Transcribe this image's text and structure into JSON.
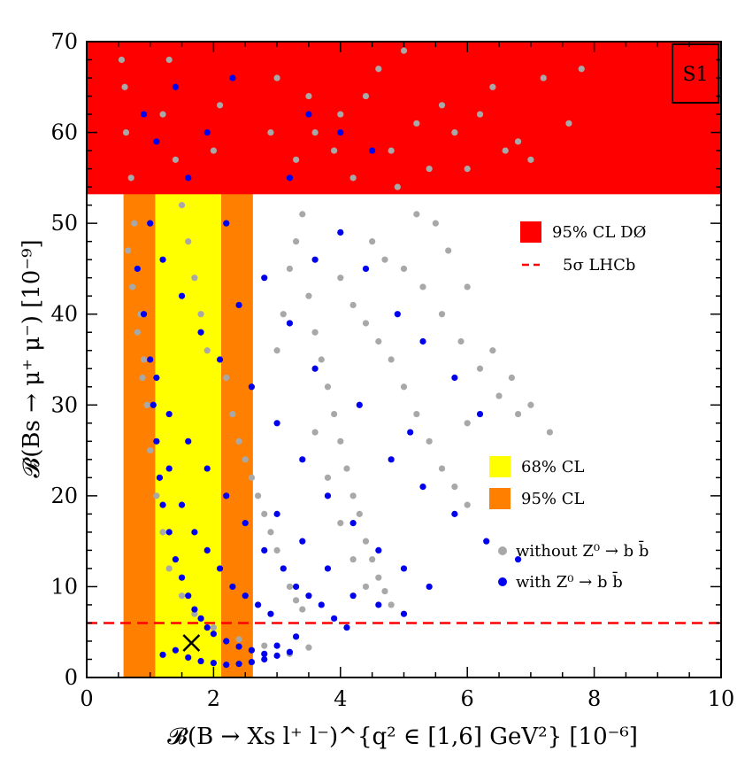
{
  "chart_data": {
    "type": "scatter",
    "tag": "S1",
    "xlabel": "𝓑(B → Xs l⁺ l⁻)^{q² ∈ [1,6] GeV²}   [10⁻⁶]",
    "ylabel": "𝓑(Bs → μ⁺ μ⁻)   [10⁻⁹]",
    "xlim": [
      0,
      10
    ],
    "ylim": [
      0,
      70
    ],
    "x_ticks": [
      "0",
      "2",
      "4",
      "6",
      "8",
      "10"
    ],
    "y_ticks": [
      "0",
      "10",
      "20",
      "30",
      "40",
      "50",
      "60",
      "70"
    ],
    "bands": [
      {
        "name": "95% CL",
        "axis": "x",
        "range": [
          0.58,
          2.62
        ],
        "color": "#ff8000"
      },
      {
        "name": "68% CL",
        "axis": "x",
        "range": [
          1.08,
          2.12
        ],
        "color": "#ffff00"
      },
      {
        "name": "95% CL DØ",
        "axis": "y",
        "range": [
          53.2,
          70
        ],
        "color": "#ff0000"
      }
    ],
    "lines": [
      {
        "name": "5σ LHCb",
        "axis": "y",
        "value": 6.0,
        "color": "#ff0000",
        "style": "dashed"
      }
    ],
    "marker": {
      "x": 1.65,
      "y": 3.8,
      "symbol": "x"
    },
    "series": [
      {
        "name": "without Z⁰ → b b̄",
        "color": "#a8a8a8",
        "points": [
          [
            0.55,
            68
          ],
          [
            0.6,
            65
          ],
          [
            0.62,
            60
          ],
          [
            0.7,
            55
          ],
          [
            0.75,
            50
          ],
          [
            0.8,
            45
          ],
          [
            0.85,
            40
          ],
          [
            0.9,
            35
          ],
          [
            0.95,
            30
          ],
          [
            1.0,
            25
          ],
          [
            1.1,
            20
          ],
          [
            1.2,
            16
          ],
          [
            1.3,
            12
          ],
          [
            1.5,
            9
          ],
          [
            1.7,
            7
          ],
          [
            2.0,
            5.5
          ],
          [
            2.4,
            4.2
          ],
          [
            2.8,
            3.5
          ],
          [
            3.2,
            2.6
          ],
          [
            3.5,
            3.3
          ],
          [
            0.65,
            47
          ],
          [
            0.72,
            43
          ],
          [
            0.8,
            38
          ],
          [
            0.88,
            33
          ],
          [
            1.2,
            62
          ],
          [
            1.3,
            68
          ],
          [
            1.4,
            57
          ],
          [
            1.5,
            52
          ],
          [
            1.6,
            48
          ],
          [
            1.7,
            44
          ],
          [
            1.8,
            40
          ],
          [
            1.9,
            36
          ],
          [
            2.0,
            58
          ],
          [
            2.1,
            63
          ],
          [
            2.2,
            33
          ],
          [
            2.3,
            29
          ],
          [
            2.4,
            26
          ],
          [
            2.5,
            24
          ],
          [
            2.6,
            22
          ],
          [
            2.7,
            20
          ],
          [
            2.8,
            18
          ],
          [
            2.9,
            16
          ],
          [
            3.0,
            14
          ],
          [
            3.1,
            12
          ],
          [
            3.2,
            10
          ],
          [
            3.3,
            8.5
          ],
          [
            3.4,
            7.5
          ],
          [
            3.0,
            36
          ],
          [
            3.1,
            40
          ],
          [
            3.2,
            45
          ],
          [
            3.3,
            48
          ],
          [
            3.4,
            51
          ],
          [
            3.5,
            42
          ],
          [
            3.6,
            38
          ],
          [
            3.7,
            35
          ],
          [
            3.8,
            32
          ],
          [
            3.9,
            29
          ],
          [
            4.0,
            26
          ],
          [
            4.1,
            23
          ],
          [
            4.2,
            20
          ],
          [
            4.3,
            18
          ],
          [
            4.4,
            15
          ],
          [
            4.5,
            13
          ],
          [
            4.6,
            11
          ],
          [
            4.7,
            9.5
          ],
          [
            4.8,
            8
          ],
          [
            3.6,
            27
          ],
          [
            3.8,
            22
          ],
          [
            4.0,
            17
          ],
          [
            4.2,
            13
          ],
          [
            4.4,
            10
          ],
          [
            4.0,
            44
          ],
          [
            4.2,
            41
          ],
          [
            4.4,
            39
          ],
          [
            4.6,
            37
          ],
          [
            4.8,
            35
          ],
          [
            5.0,
            32
          ],
          [
            5.2,
            29
          ],
          [
            5.4,
            26
          ],
          [
            5.6,
            23
          ],
          [
            5.8,
            21
          ],
          [
            6.0,
            19
          ],
          [
            5.0,
            45
          ],
          [
            5.3,
            43
          ],
          [
            5.6,
            40
          ],
          [
            5.9,
            37
          ],
          [
            6.2,
            34
          ],
          [
            6.5,
            31
          ],
          [
            6.8,
            29
          ],
          [
            5.5,
            50
          ],
          [
            5.7,
            47
          ],
          [
            6.0,
            43
          ],
          [
            6.4,
            36
          ],
          [
            6.7,
            33
          ],
          [
            7.0,
            30
          ],
          [
            7.3,
            27
          ],
          [
            6.0,
            28
          ],
          [
            4.5,
            48
          ],
          [
            4.7,
            46
          ],
          [
            5.2,
            51
          ],
          [
            3.3,
            57
          ],
          [
            3.6,
            60
          ],
          [
            4.0,
            62
          ],
          [
            4.4,
            64
          ],
          [
            4.8,
            58
          ],
          [
            5.2,
            61
          ],
          [
            5.6,
            63
          ],
          [
            6.0,
            56
          ],
          [
            6.4,
            65
          ],
          [
            6.8,
            59
          ],
          [
            7.2,
            66
          ],
          [
            7.6,
            61
          ],
          [
            4.6,
            67
          ],
          [
            5.0,
            69
          ],
          [
            3.0,
            66
          ],
          [
            3.5,
            64
          ],
          [
            4.2,
            55
          ],
          [
            5.4,
            56
          ],
          [
            6.2,
            62
          ],
          [
            7.0,
            57
          ],
          [
            7.8,
            67
          ],
          [
            6.6,
            58
          ],
          [
            5.8,
            60
          ],
          [
            2.9,
            60
          ],
          [
            3.9,
            58
          ],
          [
            4.9,
            54
          ]
        ]
      },
      {
        "name": "with Z⁰ → b b̄",
        "color": "#0000ee",
        "points": [
          [
            0.8,
            45
          ],
          [
            0.9,
            40
          ],
          [
            1.0,
            35
          ],
          [
            1.05,
            30
          ],
          [
            1.1,
            26
          ],
          [
            1.15,
            22
          ],
          [
            1.2,
            19
          ],
          [
            1.3,
            16
          ],
          [
            1.4,
            13
          ],
          [
            1.5,
            11
          ],
          [
            1.6,
            9
          ],
          [
            1.7,
            7.5
          ],
          [
            1.8,
            6.5
          ],
          [
            1.9,
            5.5
          ],
          [
            2.0,
            4.8
          ],
          [
            2.2,
            4.0
          ],
          [
            2.4,
            3.4
          ],
          [
            2.6,
            3.0
          ],
          [
            2.8,
            2.6
          ],
          [
            3.0,
            2.4
          ],
          [
            3.2,
            2.8
          ],
          [
            1.2,
            2.5
          ],
          [
            1.4,
            3.0
          ],
          [
            1.6,
            2.2
          ],
          [
            1.8,
            1.8
          ],
          [
            2.0,
            1.6
          ],
          [
            2.2,
            1.4
          ],
          [
            2.4,
            1.5
          ],
          [
            2.6,
            1.7
          ],
          [
            2.8,
            2.0
          ],
          [
            3.0,
            3.5
          ],
          [
            3.3,
            4.5
          ],
          [
            1.3,
            23
          ],
          [
            1.5,
            19
          ],
          [
            1.7,
            16
          ],
          [
            1.9,
            14
          ],
          [
            2.1,
            12
          ],
          [
            2.3,
            10
          ],
          [
            2.5,
            9
          ],
          [
            2.7,
            8
          ],
          [
            2.9,
            7
          ],
          [
            1.1,
            33
          ],
          [
            1.3,
            29
          ],
          [
            1.6,
            26
          ],
          [
            1.9,
            23
          ],
          [
            2.2,
            20
          ],
          [
            2.5,
            17
          ],
          [
            2.8,
            14
          ],
          [
            3.1,
            12
          ],
          [
            3.3,
            10
          ],
          [
            3.5,
            9
          ],
          [
            3.7,
            8
          ],
          [
            3.9,
            6.5
          ],
          [
            4.1,
            5.5
          ],
          [
            3.0,
            18
          ],
          [
            3.4,
            15
          ],
          [
            3.8,
            12
          ],
          [
            4.2,
            9
          ],
          [
            4.6,
            8
          ],
          [
            5.0,
            7
          ],
          [
            2.6,
            32
          ],
          [
            3.0,
            28
          ],
          [
            3.4,
            24
          ],
          [
            3.8,
            20
          ],
          [
            4.2,
            17
          ],
          [
            4.6,
            14
          ],
          [
            5.0,
            12
          ],
          [
            5.4,
            10
          ],
          [
            1.0,
            50
          ],
          [
            1.2,
            46
          ],
          [
            1.5,
            42
          ],
          [
            1.8,
            38
          ],
          [
            2.1,
            35
          ],
          [
            2.4,
            41
          ],
          [
            2.8,
            44
          ],
          [
            3.2,
            39
          ],
          [
            3.6,
            46
          ],
          [
            4.0,
            49
          ],
          [
            4.4,
            45
          ],
          [
            4.9,
            40
          ],
          [
            5.3,
            37
          ],
          [
            5.8,
            33
          ],
          [
            6.2,
            29
          ],
          [
            3.5,
            62
          ],
          [
            4.0,
            60
          ],
          [
            4.5,
            58
          ],
          [
            3.2,
            55
          ],
          [
            2.2,
            50
          ],
          [
            1.6,
            55
          ],
          [
            1.9,
            60
          ],
          [
            2.3,
            66
          ],
          [
            1.4,
            65
          ],
          [
            1.1,
            59
          ],
          [
            0.9,
            62
          ],
          [
            4.8,
            24
          ],
          [
            5.3,
            21
          ],
          [
            5.8,
            18
          ],
          [
            6.3,
            15
          ],
          [
            6.8,
            13
          ],
          [
            3.6,
            34
          ],
          [
            4.3,
            30
          ],
          [
            5.1,
            27
          ]
        ]
      }
    ],
    "legend": [
      {
        "label": "95% CL DØ",
        "kind": "square",
        "color": "#ff0000"
      },
      {
        "label": "5σ LHCb",
        "kind": "dash",
        "color": "#ff0000"
      },
      {
        "label": "68% CL",
        "kind": "square",
        "color": "#ffff00"
      },
      {
        "label": "95% CL",
        "kind": "square",
        "color": "#ff8000"
      },
      {
        "label": "without Z⁰ → b b̄",
        "kind": "dot",
        "color": "#a8a8a8"
      },
      {
        "label": "with Z⁰ → b b̄",
        "kind": "dot",
        "color": "#0000ee"
      }
    ]
  }
}
